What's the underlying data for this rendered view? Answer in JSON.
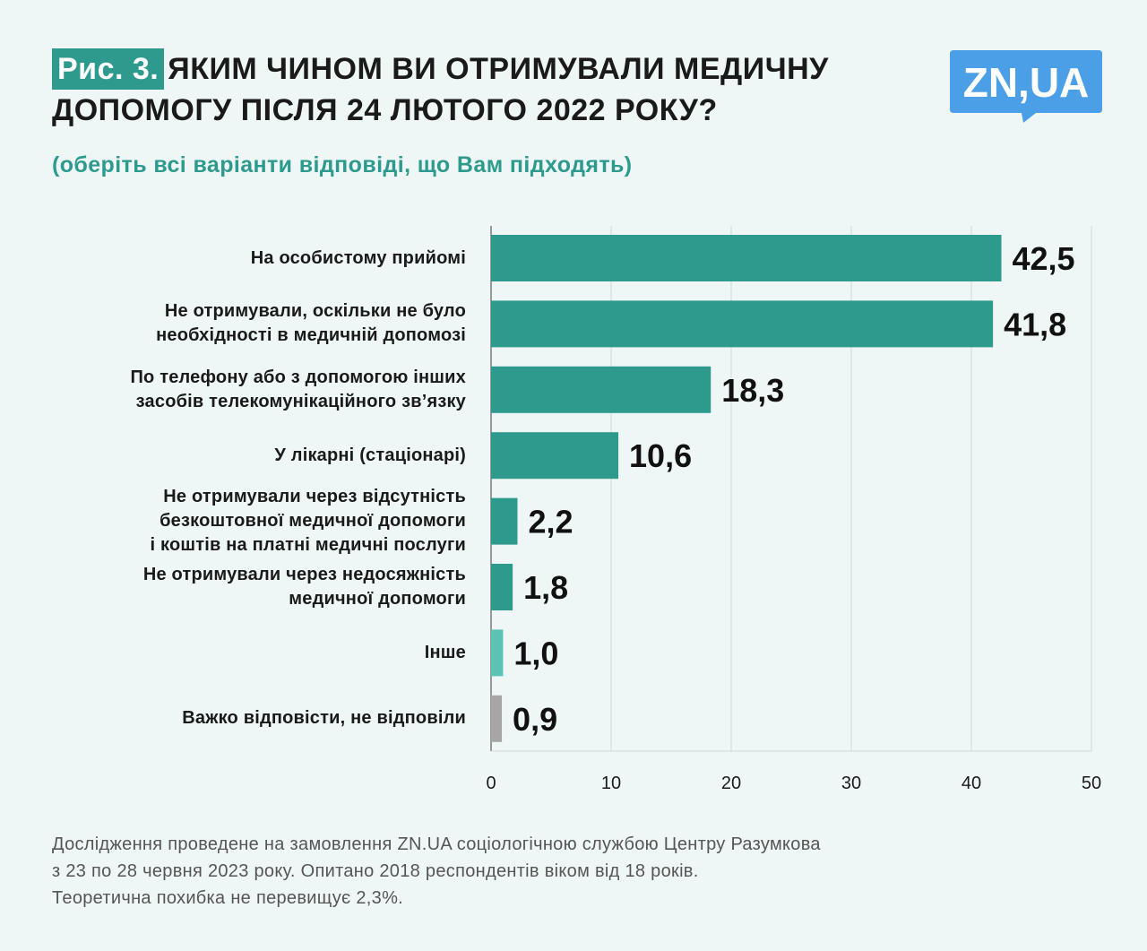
{
  "header": {
    "figure_label": "Рис. 3.",
    "title_line1": "ЯКИМ ЧИНОМ ВИ ОТРИМУВАЛИ МЕДИЧНУ",
    "title_line2": "ДОПОМОГУ ПІСЛЯ 24 ЛЮТОГО 2022 РОКУ?",
    "subtitle": "(оберіть всі варіанти відповіді, що Вам підходять)"
  },
  "logo": {
    "text": "ZN,UA",
    "color": "#4a9fe6"
  },
  "colors": {
    "accent": "#2e9a8e",
    "bar_main": "#2e9a8e",
    "bar_other": "#5cc2b5",
    "bar_neutral": "#a6a6a6",
    "grid": "#cfd8d6"
  },
  "chart_data": {
    "type": "bar",
    "orientation": "horizontal",
    "xlim": [
      0,
      50
    ],
    "xticks": [
      0,
      10,
      20,
      30,
      40,
      50
    ],
    "categories": [
      "На особистому прийомі",
      "Не отримували, оскільки не було\nнеобхідності в медичній допомозі",
      "По телефону або з допомогою інших\nзасобів телекомунікаційного зв’язку",
      "У лікарні (стаціонарі)",
      "Не отримували через відсутність\nбезкоштовної медичної допомоги\nі коштів на платні медичні послуги",
      "Не отримували через недосяжність\nмедичної допомоги",
      "Інше",
      "Важко відповісти, не відповіли"
    ],
    "values": [
      42.5,
      41.8,
      18.3,
      10.6,
      2.2,
      1.8,
      1.0,
      0.9
    ],
    "value_labels": [
      "42,5",
      "41,8",
      "18,3",
      "10,6",
      "2,2",
      "1,8",
      "1,0",
      "0,9"
    ],
    "bar_color_keys": [
      "bar_main",
      "bar_main",
      "bar_main",
      "bar_main",
      "bar_main",
      "bar_main",
      "bar_other",
      "bar_neutral"
    ]
  },
  "footnote": {
    "line1": "Дослідження проведене на замовлення ZN.UA соціологічною службою Центру Разумкова",
    "line2": "з 23 по 28 червня 2023 року. Опитано 2018 респондентів віком від 18 років.",
    "line3": "Теоретична похибка не перевищує 2,3%."
  }
}
